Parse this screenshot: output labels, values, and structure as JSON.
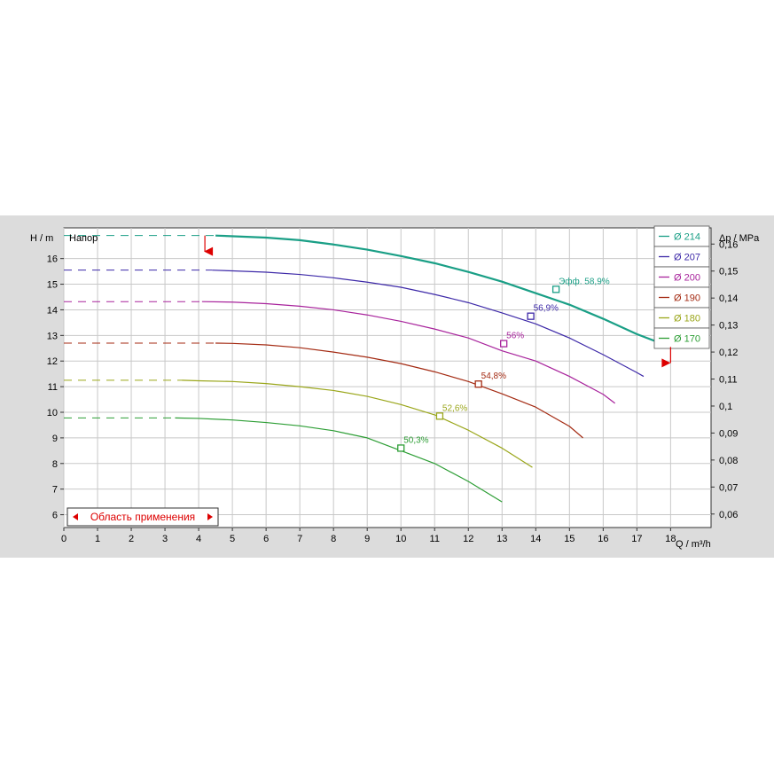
{
  "chart_data": {
    "type": "line",
    "title": "Напор",
    "xlabel": "Q / m³/h",
    "ylabel": "H / m",
    "y2label": "Δp / MPa",
    "xlim": [
      0,
      19.2
    ],
    "ylim": [
      5.5,
      17.2
    ],
    "y2lim": [
      0.055,
      0.166
    ],
    "x_ticks": [
      0,
      1,
      2,
      3,
      4,
      5,
      6,
      7,
      8,
      9,
      10,
      11,
      12,
      13,
      14,
      15,
      16,
      17,
      18
    ],
    "y_ticks": [
      6,
      7,
      8,
      9,
      10,
      11,
      12,
      13,
      14,
      15,
      16
    ],
    "y2_ticks": [
      "0,06",
      "0,07",
      "0,08",
      "0,09",
      "0,1",
      "0,11",
      "0,12",
      "0,13",
      "0,14",
      "0,15",
      "0,16"
    ],
    "grid": true,
    "legend_position": "top-right",
    "application_range": {
      "label": "Область применения",
      "q_min": 4.5,
      "q_max": 18
    },
    "series": [
      {
        "name": "Ø 214",
        "color": "#1a9f86",
        "width": 2.2,
        "dashed": [
          [
            0,
            16.9
          ],
          [
            4.5,
            16.9
          ]
        ],
        "points": [
          [
            4.5,
            16.9
          ],
          [
            6,
            16.82
          ],
          [
            7,
            16.72
          ],
          [
            8,
            16.55
          ],
          [
            9,
            16.35
          ],
          [
            10,
            16.1
          ],
          [
            11,
            15.82
          ],
          [
            12,
            15.48
          ],
          [
            13,
            15.1
          ],
          [
            14,
            14.65
          ],
          [
            14.6,
            14.8
          ],
          [
            15,
            14.2
          ],
          [
            16,
            13.65
          ],
          [
            17,
            13.05
          ],
          [
            18,
            12.55
          ]
        ],
        "marker": {
          "q": 14.6,
          "h": 14.8,
          "label": "Эфф.  58,9%"
        }
      },
      {
        "name": "Ø 207",
        "color": "#3d29a8",
        "width": 1.2,
        "dashed": [
          [
            0,
            15.55
          ],
          [
            4.4,
            15.55
          ]
        ],
        "points": [
          [
            4.4,
            15.55
          ],
          [
            5,
            15.52
          ],
          [
            6,
            15.47
          ],
          [
            7,
            15.38
          ],
          [
            8,
            15.25
          ],
          [
            9,
            15.08
          ],
          [
            10,
            14.88
          ],
          [
            11,
            14.6
          ],
          [
            12,
            14.28
          ],
          [
            13,
            13.88
          ],
          [
            13.85,
            13.75
          ],
          [
            14,
            13.45
          ],
          [
            15,
            12.9
          ],
          [
            16,
            12.25
          ],
          [
            17,
            11.55
          ],
          [
            17.2,
            11.4
          ]
        ],
        "marker": {
          "q": 13.85,
          "h": 13.75,
          "label": "56,9%"
        }
      },
      {
        "name": "Ø 200",
        "color": "#a8239c",
        "width": 1.2,
        "dashed": [
          [
            0,
            14.32
          ],
          [
            4.1,
            14.32
          ]
        ],
        "points": [
          [
            4.1,
            14.32
          ],
          [
            5,
            14.3
          ],
          [
            6,
            14.24
          ],
          [
            7,
            14.14
          ],
          [
            8,
            14.0
          ],
          [
            9,
            13.8
          ],
          [
            10,
            13.55
          ],
          [
            11,
            13.25
          ],
          [
            12,
            12.9
          ],
          [
            13,
            12.4
          ],
          [
            13.05,
            12.68
          ],
          [
            14,
            12.0
          ],
          [
            15,
            11.4
          ],
          [
            16,
            10.7
          ],
          [
            16.35,
            10.35
          ]
        ],
        "marker": {
          "q": 13.05,
          "h": 12.68,
          "label": "56%"
        }
      },
      {
        "name": "Ø 190",
        "color": "#a42b13",
        "width": 1.2,
        "dashed": [
          [
            0,
            12.7
          ],
          [
            4.5,
            12.7
          ]
        ],
        "points": [
          [
            4.5,
            12.7
          ],
          [
            5,
            12.69
          ],
          [
            6,
            12.63
          ],
          [
            7,
            12.52
          ],
          [
            8,
            12.35
          ],
          [
            9,
            12.15
          ],
          [
            10,
            11.9
          ],
          [
            11,
            11.58
          ],
          [
            12,
            11.2
          ],
          [
            12.3,
            11.1
          ],
          [
            13,
            10.72
          ],
          [
            14,
            10.2
          ],
          [
            15,
            9.45
          ],
          [
            15.4,
            9.0
          ]
        ],
        "marker": {
          "q": 12.3,
          "h": 11.1,
          "label": "54,8%"
        }
      },
      {
        "name": "Ø 180",
        "color": "#9aa61a",
        "width": 1.2,
        "dashed": [
          [
            0,
            11.25
          ],
          [
            3.5,
            11.25
          ]
        ],
        "points": [
          [
            3.5,
            11.25
          ],
          [
            4,
            11.23
          ],
          [
            5,
            11.2
          ],
          [
            6,
            11.12
          ],
          [
            7,
            11.0
          ],
          [
            8,
            10.85
          ],
          [
            9,
            10.62
          ],
          [
            10,
            10.3
          ],
          [
            11,
            9.9
          ],
          [
            11.15,
            9.85
          ],
          [
            12,
            9.3
          ],
          [
            13,
            8.6
          ],
          [
            13.9,
            7.85
          ]
        ],
        "marker": {
          "q": 11.15,
          "h": 9.85,
          "label": "52,6%"
        }
      },
      {
        "name": "Ø 170",
        "color": "#2d9e35",
        "width": 1.2,
        "dashed": [
          [
            0,
            9.78
          ],
          [
            3.3,
            9.78
          ]
        ],
        "points": [
          [
            3.3,
            9.78
          ],
          [
            4,
            9.76
          ],
          [
            5,
            9.7
          ],
          [
            6,
            9.6
          ],
          [
            7,
            9.47
          ],
          [
            8,
            9.28
          ],
          [
            9,
            9.0
          ],
          [
            10,
            8.6
          ],
          [
            11,
            8.0
          ],
          [
            12,
            7.3
          ],
          [
            13,
            6.5
          ]
        ],
        "marker": {
          "q": 10.0,
          "h": 8.6,
          "label": "50,3%"
        }
      }
    ]
  }
}
